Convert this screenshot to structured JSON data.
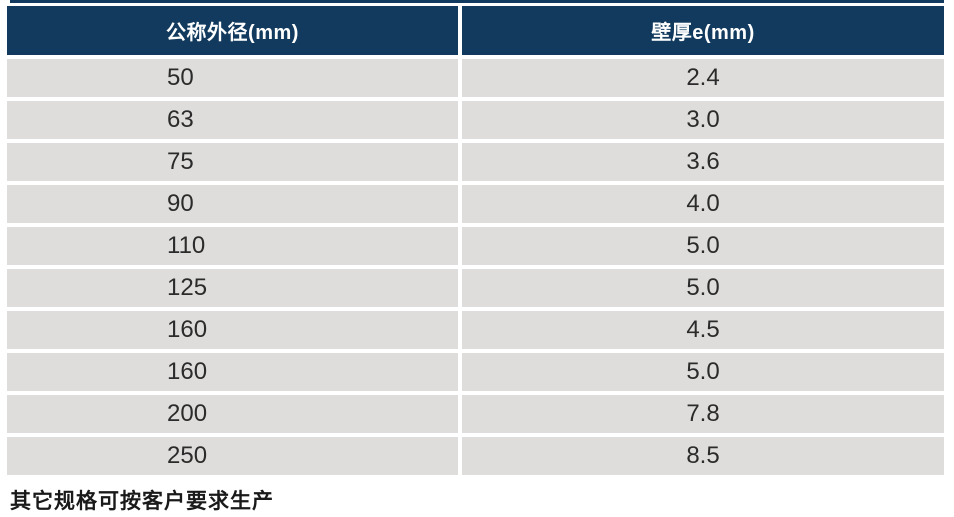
{
  "table": {
    "headers": [
      {
        "label": "公称外径(mm)"
      },
      {
        "label": "壁厚e(mm)"
      }
    ],
    "rows": [
      {
        "od": "50",
        "wall": "2.4"
      },
      {
        "od": "63",
        "wall": "3.0"
      },
      {
        "od": "75",
        "wall": "3.6"
      },
      {
        "od": "90",
        "wall": "4.0"
      },
      {
        "od": "110",
        "wall": "5.0"
      },
      {
        "od": "125",
        "wall": "5.0"
      },
      {
        "od": "160",
        "wall": "4.5"
      },
      {
        "od": "160",
        "wall": "5.0"
      },
      {
        "od": "200",
        "wall": "7.8"
      },
      {
        "od": "250",
        "wall": "8.5"
      }
    ]
  },
  "footnote": "其它规格可按客户要求生产",
  "colors": {
    "header_bg": "#113a5e",
    "header_text": "#ffffff",
    "row_bg": "#dedddb",
    "cell_text": "#2b2b2b",
    "page_bg": "#ffffff"
  }
}
